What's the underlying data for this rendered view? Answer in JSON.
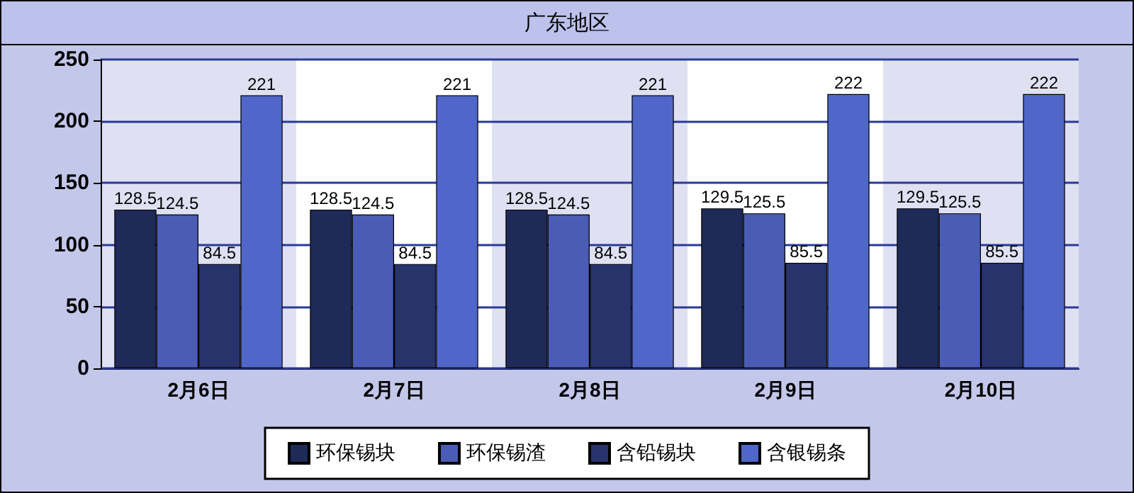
{
  "chart_data": {
    "type": "bar",
    "title": "广东地区",
    "categories": [
      "2月6日",
      "2月7日",
      "2月8日",
      "2月9日",
      "2月10日"
    ],
    "series": [
      {
        "name": "环保锡块",
        "color": "#1f2a58",
        "values": [
          128.5,
          128.5,
          128.5,
          129.5,
          129.5
        ]
      },
      {
        "name": "环保锡渣",
        "color": "#4a5cb4",
        "values": [
          124.5,
          124.5,
          124.5,
          125.5,
          125.5
        ]
      },
      {
        "name": "含铅锡块",
        "color": "#28336c",
        "values": [
          84.5,
          84.5,
          84.5,
          85.5,
          85.5
        ]
      },
      {
        "name": "含银锡条",
        "color": "#5066c8",
        "values": [
          221,
          221,
          221,
          222,
          222
        ]
      }
    ],
    "ylim": [
      0,
      250
    ],
    "yticks": [
      0,
      50,
      100,
      150,
      200,
      250
    ],
    "grid": "y",
    "legend": "bottom",
    "data_labels": true
  }
}
